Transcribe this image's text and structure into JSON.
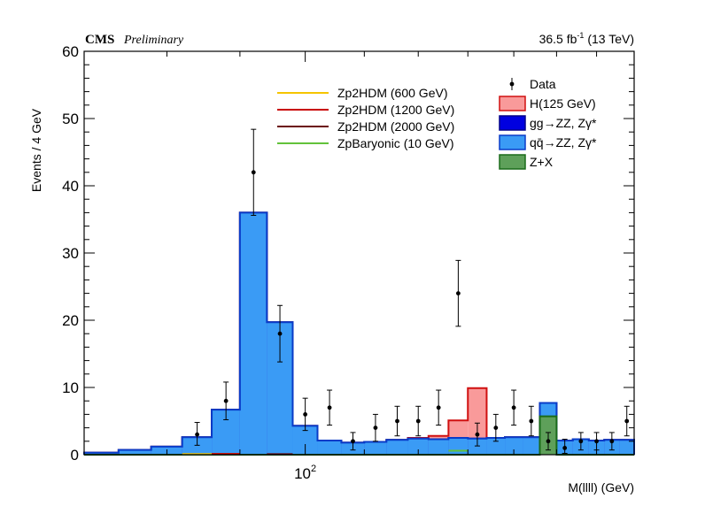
{
  "header": {
    "experiment": "CMS",
    "status": "Preliminary",
    "luminosity": "36.5 fb",
    "luminosity_exp": "-1",
    "energy": "(13 TeV)"
  },
  "chart_data": {
    "type": "bar",
    "xlabel": "M(llll) (GeV)",
    "ylabel": "Events / 4 GeV",
    "xlim": [
      70,
      170
    ],
    "ylim": [
      0,
      60
    ],
    "x_scale": "log",
    "x_tick_labels": [
      "10",
      "2"
    ],
    "yticks": [
      0,
      10,
      20,
      30,
      40,
      50,
      60
    ],
    "bin_width": 4,
    "bin_edges": [
      70,
      74,
      78,
      82,
      86,
      90,
      94,
      98,
      102,
      106,
      110,
      114,
      118,
      122,
      126,
      130,
      134,
      138,
      142,
      146,
      150,
      154,
      158,
      162,
      166,
      170
    ],
    "stack": [
      {
        "name": "Z+X",
        "color": "#5ea05a",
        "edge": "#1a6b1a",
        "values": [
          0,
          0,
          0,
          0,
          0,
          0,
          0,
          0,
          0,
          0,
          0,
          0,
          0,
          0,
          0,
          0,
          0,
          0,
          0,
          5.7,
          0,
          0,
          0,
          0,
          0
        ]
      },
      {
        "name": "qq̄→ZZ, Zγ*",
        "color": "#3a9bf5",
        "edge": "#0a3cc8",
        "values": [
          0.3,
          0.7,
          1.2,
          2.6,
          6.7,
          36.0,
          19.7,
          4.3,
          2.1,
          1.8,
          1.9,
          2.2,
          2.4,
          2.3,
          2.5,
          2.4,
          2.5,
          2.6,
          2.6,
          2.0,
          2.1,
          2.3,
          2.1,
          2.2,
          2.2
        ]
      },
      {
        "name": "gg→ZZ, Zγ*",
        "color": "#0000e0",
        "edge": "#00008a",
        "values": [
          0,
          0,
          0,
          0,
          0,
          0,
          0,
          0,
          0,
          0,
          0,
          0,
          0,
          0,
          0,
          0,
          0,
          0,
          0,
          0,
          0,
          0,
          0,
          0,
          0
        ]
      },
      {
        "name": "H(125 GeV)",
        "color": "#f99a9a",
        "edge": "#d01010",
        "values": [
          0,
          0,
          0,
          0,
          0,
          0,
          0,
          0,
          0,
          0,
          0,
          0,
          0.1,
          0.5,
          2.6,
          7.5,
          0,
          0,
          0,
          0,
          0,
          0,
          0,
          0,
          0
        ]
      }
    ],
    "data": {
      "name": "Data",
      "points": [
        {
          "x": 84,
          "y": 3,
          "lo": 1.6,
          "hi": 1.8
        },
        {
          "x": 88,
          "y": 8,
          "lo": 2.8,
          "hi": 2.8
        },
        {
          "x": 92,
          "y": 42,
          "lo": 6.4,
          "hi": 6.4
        },
        {
          "x": 96,
          "y": 18,
          "lo": 4.2,
          "hi": 4.2
        },
        {
          "x": 100,
          "y": 6,
          "lo": 2.4,
          "hi": 2.4
        },
        {
          "x": 104,
          "y": 7,
          "lo": 2.6,
          "hi": 2.6
        },
        {
          "x": 108,
          "y": 2,
          "lo": 1.3,
          "hi": 1.3
        },
        {
          "x": 112,
          "y": 4,
          "lo": 2.0,
          "hi": 2.0
        },
        {
          "x": 116,
          "y": 5,
          "lo": 2.2,
          "hi": 2.2
        },
        {
          "x": 120,
          "y": 5,
          "lo": 2.2,
          "hi": 2.2
        },
        {
          "x": 124,
          "y": 7,
          "lo": 2.6,
          "hi": 2.6
        },
        {
          "x": 128,
          "y": 24,
          "lo": 4.9,
          "hi": 4.9
        },
        {
          "x": 132,
          "y": 3,
          "lo": 1.7,
          "hi": 1.7
        },
        {
          "x": 136,
          "y": 4,
          "lo": 2.0,
          "hi": 2.0
        },
        {
          "x": 140,
          "y": 7,
          "lo": 2.6,
          "hi": 2.6
        },
        {
          "x": 144,
          "y": 5,
          "lo": 2.2,
          "hi": 2.2
        },
        {
          "x": 148,
          "y": 2,
          "lo": 1.3,
          "hi": 1.3
        },
        {
          "x": 152,
          "y": 1,
          "lo": 0.8,
          "hi": 1.3
        },
        {
          "x": 156,
          "y": 2,
          "lo": 1.3,
          "hi": 1.3
        },
        {
          "x": 160,
          "y": 2,
          "lo": 1.3,
          "hi": 1.3
        },
        {
          "x": 164,
          "y": 2,
          "lo": 1.3,
          "hi": 1.3
        },
        {
          "x": 168,
          "y": 5,
          "lo": 2.2,
          "hi": 2.2
        }
      ]
    },
    "signal_lines": [
      {
        "name": "Zp2HDM (600 GeV)",
        "color": "#f5c400",
        "x": [
          82,
          90
        ],
        "y": 0.1
      },
      {
        "name": "Zp2HDM (1200 GeV)",
        "color": "#c80000",
        "x": [
          86,
          90
        ],
        "y": 0.12
      },
      {
        "name": "Zp2HDM (2000 GeV)",
        "color": "#6b0a0a",
        "x": [
          94,
          98
        ],
        "y": 0.08
      },
      {
        "name": "ZpBaryonic (10 GeV)",
        "color": "#62c23a",
        "x": [
          126,
          130
        ],
        "y": 0.6
      }
    ],
    "legend_signals": [
      {
        "label": "Zp2HDM (600 GeV)",
        "color": "#f5c400"
      },
      {
        "label": "Zp2HDM (1200 GeV)",
        "color": "#c80000"
      },
      {
        "label": "Zp2HDM (2000 GeV)",
        "color": "#6b0a0a"
      },
      {
        "label": "ZpBaryonic (10 GeV)",
        "color": "#62c23a"
      }
    ],
    "legend_backgrounds": [
      {
        "label": "Data",
        "kind": "point"
      },
      {
        "label": "H(125 GeV)",
        "kind": "box",
        "color": "#f99a9a",
        "edge": "#d01010"
      },
      {
        "label": "gg→ZZ, Zγ*",
        "kind": "box",
        "color": "#0000e0",
        "edge": "#00008a"
      },
      {
        "label": "qq̄→ZZ, Zγ*",
        "kind": "box",
        "color": "#3a9bf5",
        "edge": "#0a3cc8"
      },
      {
        "label": "Z+X",
        "kind": "box",
        "color": "#5ea05a",
        "edge": "#1a6b1a"
      }
    ]
  }
}
